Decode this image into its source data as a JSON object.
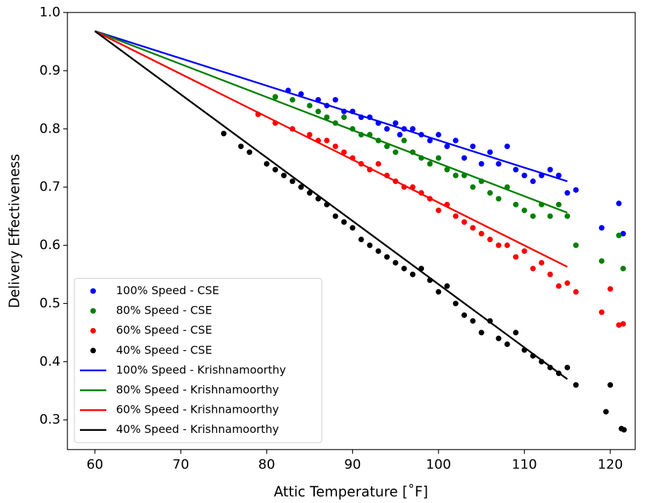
{
  "chart_data": {
    "type": "scatter",
    "xlabel": "Attic Temperature [˚F]",
    "ylabel": "Delivery Effectiveness",
    "xlim": [
      56.8,
      122.9
    ],
    "ylim": [
      0.249,
      1.0
    ],
    "xticks": [
      60,
      70,
      80,
      90,
      100,
      110,
      120
    ],
    "yticks": [
      0.3,
      0.4,
      0.5,
      0.6,
      0.7,
      0.8,
      0.9,
      {
        "value": 1,
        "label": "1.0"
      }
    ],
    "legend": "lower left",
    "series": [
      {
        "name": "100% Speed - CSE",
        "type": "scatter",
        "color": "#0000ff",
        "x": [
          82.5,
          84,
          86,
          87,
          88,
          89,
          90,
          91,
          92,
          93,
          94,
          95,
          95.5,
          96,
          97,
          98,
          99,
          100,
          101,
          102,
          103,
          104,
          105,
          106,
          107,
          108,
          109,
          110,
          111,
          112,
          113,
          114,
          115,
          116,
          119,
          121,
          121.5
        ],
        "values": [
          0.866,
          0.86,
          0.85,
          0.84,
          0.85,
          0.83,
          0.83,
          0.82,
          0.82,
          0.81,
          0.8,
          0.81,
          0.79,
          0.8,
          0.8,
          0.79,
          0.78,
          0.79,
          0.77,
          0.78,
          0.75,
          0.77,
          0.74,
          0.76,
          0.74,
          0.77,
          0.73,
          0.72,
          0.71,
          0.72,
          0.73,
          0.72,
          0.69,
          0.695,
          0.63,
          0.672,
          0.62
        ]
      },
      {
        "name": "80% Speed - CSE",
        "type": "scatter",
        "color": "#008000",
        "x": [
          81,
          83,
          85,
          86,
          87,
          88,
          89,
          90,
          91,
          92,
          93,
          94,
          95,
          96,
          97,
          98,
          99,
          100,
          101,
          102,
          103,
          104,
          105,
          106,
          107,
          108,
          109,
          110,
          111,
          112,
          113,
          114,
          115,
          116,
          119,
          121,
          121.5
        ],
        "values": [
          0.855,
          0.85,
          0.84,
          0.83,
          0.82,
          0.81,
          0.82,
          0.8,
          0.79,
          0.79,
          0.78,
          0.77,
          0.76,
          0.78,
          0.76,
          0.75,
          0.74,
          0.75,
          0.73,
          0.72,
          0.72,
          0.7,
          0.71,
          0.69,
          0.68,
          0.7,
          0.67,
          0.66,
          0.65,
          0.67,
          0.65,
          0.67,
          0.65,
          0.6,
          0.573,
          0.617,
          0.56
        ]
      },
      {
        "name": "60% Speed - CSE",
        "type": "scatter",
        "color": "#ff0000",
        "x": [
          79,
          81,
          83,
          85,
          86,
          87,
          88,
          89,
          90,
          91,
          92,
          93,
          94,
          95,
          96,
          97,
          98,
          99,
          100,
          101,
          102,
          103,
          104,
          105,
          106,
          107,
          108,
          109,
          110,
          111,
          112,
          113,
          114,
          115,
          116,
          119,
          120,
          121,
          121.5
        ],
        "values": [
          0.825,
          0.81,
          0.8,
          0.79,
          0.78,
          0.78,
          0.77,
          0.76,
          0.75,
          0.74,
          0.73,
          0.74,
          0.72,
          0.71,
          0.7,
          0.7,
          0.69,
          0.68,
          0.66,
          0.67,
          0.65,
          0.64,
          0.63,
          0.62,
          0.61,
          0.6,
          0.6,
          0.58,
          0.59,
          0.56,
          0.57,
          0.55,
          0.53,
          0.535,
          0.52,
          0.485,
          0.525,
          0.463,
          0.465
        ]
      },
      {
        "name": "40% Speed - CSE",
        "type": "scatter",
        "color": "#000000",
        "x": [
          75,
          77,
          78,
          80,
          81,
          82,
          83,
          84,
          85,
          86,
          87,
          88,
          89,
          90,
          91,
          92,
          93,
          94,
          95,
          96,
          97,
          98,
          99,
          100,
          101,
          102,
          103,
          104,
          105,
          106,
          107,
          108,
          109,
          110,
          111,
          112,
          113,
          114,
          115,
          116,
          119.5,
          120,
          121.3,
          121.6
        ],
        "values": [
          0.792,
          0.77,
          0.76,
          0.74,
          0.73,
          0.72,
          0.71,
          0.7,
          0.69,
          0.68,
          0.67,
          0.65,
          0.64,
          0.63,
          0.61,
          0.6,
          0.59,
          0.58,
          0.57,
          0.56,
          0.55,
          0.56,
          0.54,
          0.52,
          0.53,
          0.5,
          0.48,
          0.47,
          0.45,
          0.47,
          0.44,
          0.43,
          0.45,
          0.42,
          0.41,
          0.4,
          0.39,
          0.38,
          0.39,
          0.36,
          0.314,
          0.36,
          0.285,
          0.283
        ]
      },
      {
        "name": "100% Speed - Krishnamoorthy",
        "type": "line",
        "color": "#0000ff",
        "x": [
          60,
          115
        ],
        "values": [
          0.968,
          0.71
        ]
      },
      {
        "name": "80% Speed - Krishnamoorthy",
        "type": "line",
        "color": "#008000",
        "x": [
          60,
          115
        ],
        "values": [
          0.968,
          0.656
        ]
      },
      {
        "name": "60% Speed - Krishnamoorthy",
        "type": "line",
        "color": "#ff0000",
        "x": [
          60,
          115
        ],
        "values": [
          0.968,
          0.563
        ]
      },
      {
        "name": "40% Speed - Krishnamoorthy",
        "type": "line",
        "color": "#000000",
        "x": [
          60,
          115
        ],
        "values": [
          0.968,
          0.37
        ]
      }
    ]
  }
}
